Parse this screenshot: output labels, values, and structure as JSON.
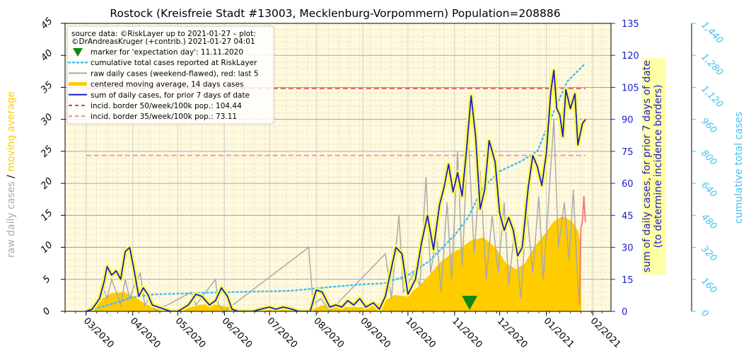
{
  "chart_data": {
    "type": "line",
    "title": "Rostock (Kreisfreie Stadt #13003, Mecklenburg-Vorpommern) Population=208886",
    "x_ticks": [
      "03/2020",
      "04/2020",
      "05/2020",
      "06/2020",
      "07/2020",
      "08/2020",
      "09/2020",
      "10/2020",
      "11/2020",
      "12/2020",
      "01/2021",
      "02/2021"
    ],
    "x_range": [
      "2020-02-16",
      "2021-02-13"
    ],
    "axes": {
      "left": {
        "label_part1": "raw daily cases",
        "label_sep": "/",
        "label_part2": "moving average",
        "range": [
          0,
          45
        ],
        "ticks": [
          "0",
          "5",
          "10",
          "15",
          "20",
          "25",
          "30",
          "35",
          "40",
          "45"
        ]
      },
      "right_inner": {
        "label_line1": "sum of daily cases, for prior 7 days of date",
        "label_line2": "(to determine incidence borders)",
        "range": [
          0,
          135
        ],
        "ticks": [
          "0",
          "15",
          "30",
          "45",
          "60",
          "75",
          "90",
          "105",
          "120",
          "135"
        ]
      },
      "right_outer": {
        "label": "cumulative total cases",
        "range": [
          0,
          1440
        ],
        "ticks": [
          "0",
          "160",
          "320",
          "480",
          "640",
          "800",
          "960",
          "1,120",
          "1,280",
          "1,440"
        ]
      }
    },
    "legend": {
      "placement": "top-left",
      "source_line1": "source data: ©RiskLayer up to 2021-01-27 – plot:",
      "source_line2": "©DrAndreasKruger (+contrib.) 2021-01-27 04:01",
      "entries": [
        {
          "key": "marker",
          "label": "marker for 'expectation day': 11.11.2020"
        },
        {
          "key": "cumulative",
          "label": "cumulative total cases reported at RiskLayer"
        },
        {
          "key": "raw",
          "label": "raw daily cases (weekend-flawed), red: last 5"
        },
        {
          "key": "avg",
          "label": "centered moving average, 14 days cases"
        },
        {
          "key": "sum7",
          "label": "sum of daily cases, for prior 7 days of date"
        },
        {
          "key": "border50",
          "label": "incid. border 50/week/100k pop.: 104.44"
        },
        {
          "key": "border35",
          "label": "incid. border 35/week/100k pop.: 73.11"
        }
      ]
    },
    "incidence_borders": {
      "border50": 104.44,
      "border35": 73.11,
      "start": "2020-03-01",
      "end": "2021-01-27"
    },
    "expectation_day": "2020-11-11",
    "series": {
      "sum7": [
        [
          "2020-03-01",
          0
        ],
        [
          "2020-03-05",
          1
        ],
        [
          "2020-03-10",
          6
        ],
        [
          "2020-03-13",
          14
        ],
        [
          "2020-03-15",
          21
        ],
        [
          "2020-03-18",
          17
        ],
        [
          "2020-03-21",
          19
        ],
        [
          "2020-03-24",
          15
        ],
        [
          "2020-03-27",
          28
        ],
        [
          "2020-03-30",
          30
        ],
        [
          "2020-04-02",
          19
        ],
        [
          "2020-04-05",
          7
        ],
        [
          "2020-04-08",
          11
        ],
        [
          "2020-04-11",
          8
        ],
        [
          "2020-04-14",
          3
        ],
        [
          "2020-04-18",
          2
        ],
        [
          "2020-04-22",
          1
        ],
        [
          "2020-04-26",
          0
        ],
        [
          "2020-05-01",
          0
        ],
        [
          "2020-05-08",
          3
        ],
        [
          "2020-05-13",
          8
        ],
        [
          "2020-05-17",
          7
        ],
        [
          "2020-05-22",
          3
        ],
        [
          "2020-05-26",
          5
        ],
        [
          "2020-05-30",
          11
        ],
        [
          "2020-06-03",
          7
        ],
        [
          "2020-06-06",
          1
        ],
        [
          "2020-06-10",
          0
        ],
        [
          "2020-06-20",
          0
        ],
        [
          "2020-06-25",
          1
        ],
        [
          "2020-07-01",
          2
        ],
        [
          "2020-07-05",
          1
        ],
        [
          "2020-07-10",
          2
        ],
        [
          "2020-07-16",
          1
        ],
        [
          "2020-07-20",
          0
        ],
        [
          "2020-07-28",
          0
        ],
        [
          "2020-08-01",
          10
        ],
        [
          "2020-08-05",
          9
        ],
        [
          "2020-08-10",
          2
        ],
        [
          "2020-08-14",
          3
        ],
        [
          "2020-08-18",
          2
        ],
        [
          "2020-08-22",
          5
        ],
        [
          "2020-08-26",
          3
        ],
        [
          "2020-08-30",
          6
        ],
        [
          "2020-09-03",
          2
        ],
        [
          "2020-09-08",
          4
        ],
        [
          "2020-09-12",
          1
        ],
        [
          "2020-09-16",
          7
        ],
        [
          "2020-09-19",
          17
        ],
        [
          "2020-09-23",
          30
        ],
        [
          "2020-09-27",
          27
        ],
        [
          "2020-10-01",
          8
        ],
        [
          "2020-10-06",
          15
        ],
        [
          "2020-10-10",
          32
        ],
        [
          "2020-10-14",
          45
        ],
        [
          "2020-10-18",
          29
        ],
        [
          "2020-10-22",
          50
        ],
        [
          "2020-10-25",
          58
        ],
        [
          "2020-10-28",
          69
        ],
        [
          "2020-10-31",
          56
        ],
        [
          "2020-11-03",
          65
        ],
        [
          "2020-11-06",
          54
        ],
        [
          "2020-11-09",
          76
        ],
        [
          "2020-11-12",
          101
        ],
        [
          "2020-11-15",
          82
        ],
        [
          "2020-11-18",
          48
        ],
        [
          "2020-11-21",
          57
        ],
        [
          "2020-11-24",
          80
        ],
        [
          "2020-11-28",
          70
        ],
        [
          "2020-12-01",
          46
        ],
        [
          "2020-12-04",
          38
        ],
        [
          "2020-12-07",
          44
        ],
        [
          "2020-12-10",
          38
        ],
        [
          "2020-12-13",
          26
        ],
        [
          "2020-12-16",
          30
        ],
        [
          "2020-12-20",
          58
        ],
        [
          "2020-12-23",
          73
        ],
        [
          "2020-12-26",
          68
        ],
        [
          "2020-12-29",
          59
        ],
        [
          "2021-01-01",
          74
        ],
        [
          "2021-01-04",
          103
        ],
        [
          "2021-01-06",
          113
        ],
        [
          "2021-01-08",
          95
        ],
        [
          "2021-01-10",
          92
        ],
        [
          "2021-01-12",
          82
        ],
        [
          "2021-01-14",
          104
        ],
        [
          "2021-01-17",
          95
        ],
        [
          "2021-01-20",
          102
        ],
        [
          "2021-01-22",
          78
        ],
        [
          "2021-01-25",
          88
        ],
        [
          "2021-01-27",
          90
        ]
      ],
      "avg": [
        [
          "2020-03-01",
          0
        ],
        [
          "2020-03-06",
          0.5
        ],
        [
          "2020-03-12",
          2
        ],
        [
          "2020-03-18",
          2.8
        ],
        [
          "2020-03-26",
          3
        ],
        [
          "2020-04-02",
          2.2
        ],
        [
          "2020-04-10",
          1
        ],
        [
          "2020-04-20",
          0.3
        ],
        [
          "2020-04-30",
          0.1
        ],
        [
          "2020-05-08",
          0.5
        ],
        [
          "2020-05-16",
          1
        ],
        [
          "2020-05-26",
          1
        ],
        [
          "2020-06-05",
          0.6
        ],
        [
          "2020-06-15",
          0.1
        ],
        [
          "2020-06-30",
          0.2
        ],
        [
          "2020-07-15",
          0.3
        ],
        [
          "2020-07-28",
          0.1
        ],
        [
          "2020-08-05",
          0.9
        ],
        [
          "2020-08-15",
          0.7
        ],
        [
          "2020-08-25",
          0.6
        ],
        [
          "2020-09-05",
          0.6
        ],
        [
          "2020-09-15",
          1.5
        ],
        [
          "2020-09-22",
          2.5
        ],
        [
          "2020-09-30",
          2.3
        ],
        [
          "2020-10-08",
          3.8
        ],
        [
          "2020-10-15",
          5.5
        ],
        [
          "2020-10-22",
          7.5
        ],
        [
          "2020-10-30",
          9
        ],
        [
          "2020-11-05",
          9.8
        ],
        [
          "2020-11-12",
          11
        ],
        [
          "2020-11-20",
          11.5
        ],
        [
          "2020-11-28",
          10
        ],
        [
          "2020-12-05",
          7.5
        ],
        [
          "2020-12-12",
          6.5
        ],
        [
          "2020-12-18",
          7.5
        ],
        [
          "2020-12-24",
          10
        ],
        [
          "2020-12-31",
          12
        ],
        [
          "2021-01-06",
          14
        ],
        [
          "2021-01-12",
          14.8
        ],
        [
          "2021-01-18",
          14
        ],
        [
          "2021-01-22",
          12.5
        ],
        [
          "2021-01-24",
          10
        ]
      ],
      "raw": [
        [
          "2020-03-01",
          0
        ],
        [
          "2020-03-08",
          1
        ],
        [
          "2020-03-12",
          4
        ],
        [
          "2020-03-15",
          2
        ],
        [
          "2020-03-18",
          5
        ],
        [
          "2020-03-21",
          3
        ],
        [
          "2020-03-24",
          1
        ],
        [
          "2020-03-27",
          5
        ],
        [
          "2020-03-30",
          2
        ],
        [
          "2020-04-02",
          4
        ],
        [
          "2020-04-06",
          6
        ],
        [
          "2020-04-09",
          1
        ],
        [
          "2020-04-12",
          2
        ],
        [
          "2020-04-16",
          0
        ],
        [
          "2020-05-10",
          3
        ],
        [
          "2020-05-13",
          1
        ],
        [
          "2020-05-26",
          5
        ],
        [
          "2020-05-28",
          1
        ],
        [
          "2020-06-01",
          0
        ],
        [
          "2020-07-27",
          10
        ],
        [
          "2020-07-30",
          1
        ],
        [
          "2020-08-04",
          2
        ],
        [
          "2020-08-10",
          0
        ],
        [
          "2020-09-16",
          9
        ],
        [
          "2020-09-20",
          2
        ],
        [
          "2020-09-25",
          15
        ],
        [
          "2020-09-28",
          3
        ],
        [
          "2020-10-05",
          6
        ],
        [
          "2020-10-09",
          4
        ],
        [
          "2020-10-13",
          21
        ],
        [
          "2020-10-16",
          6
        ],
        [
          "2020-10-20",
          12
        ],
        [
          "2020-10-23",
          3
        ],
        [
          "2020-10-27",
          17
        ],
        [
          "2020-10-30",
          5
        ],
        [
          "2020-11-03",
          25
        ],
        [
          "2020-11-06",
          7
        ],
        [
          "2020-11-10",
          28
        ],
        [
          "2020-11-14",
          9
        ],
        [
          "2020-11-18",
          22
        ],
        [
          "2020-11-22",
          5
        ],
        [
          "2020-11-26",
          15
        ],
        [
          "2020-11-30",
          6
        ],
        [
          "2020-12-04",
          17
        ],
        [
          "2020-12-07",
          4
        ],
        [
          "2020-12-11",
          13
        ],
        [
          "2020-12-15",
          2
        ],
        [
          "2020-12-19",
          16
        ],
        [
          "2020-12-23",
          6
        ],
        [
          "2020-12-27",
          18
        ],
        [
          "2020-12-30",
          5
        ],
        [
          "2021-01-03",
          19
        ],
        [
          "2021-01-06",
          30
        ],
        [
          "2021-01-09",
          10
        ],
        [
          "2021-01-13",
          17
        ],
        [
          "2021-01-16",
          8
        ],
        [
          "2021-01-19",
          19
        ],
        [
          "2021-01-22",
          4
        ],
        [
          "2021-01-23",
          2
        ]
      ],
      "raw_last5": [
        [
          "2021-01-23",
          1
        ],
        [
          "2021-01-24",
          13
        ],
        [
          "2021-01-25",
          14
        ],
        [
          "2021-01-26",
          18
        ],
        [
          "2021-01-27",
          14
        ]
      ],
      "cumulative": [
        [
          "2020-03-01",
          0
        ],
        [
          "2020-03-15",
          30
        ],
        [
          "2020-04-01",
          70
        ],
        [
          "2020-04-15",
          85
        ],
        [
          "2020-05-01",
          88
        ],
        [
          "2020-05-15",
          92
        ],
        [
          "2020-06-01",
          95
        ],
        [
          "2020-06-15",
          98
        ],
        [
          "2020-07-01",
          100
        ],
        [
          "2020-07-15",
          103
        ],
        [
          "2020-08-01",
          115
        ],
        [
          "2020-08-15",
          125
        ],
        [
          "2020-09-01",
          135
        ],
        [
          "2020-09-15",
          140
        ],
        [
          "2020-10-01",
          180
        ],
        [
          "2020-10-15",
          250
        ],
        [
          "2020-11-01",
          380
        ],
        [
          "2020-11-10",
          470
        ],
        [
          "2020-11-20",
          620
        ],
        [
          "2020-12-01",
          700
        ],
        [
          "2020-12-15",
          750
        ],
        [
          "2020-12-26",
          800
        ],
        [
          "2021-01-06",
          1000
        ],
        [
          "2021-01-15",
          1150
        ],
        [
          "2021-01-27",
          1240
        ]
      ]
    },
    "colors": {
      "plot_bg": "#fff9dd",
      "sum7": "#1c1cc8",
      "glow": "#ffff44",
      "avg": "#ffcc00",
      "raw": "#aaaaaa",
      "raw_last5": "#f08080",
      "cumulative": "#44c0f0",
      "border50": "#e04040",
      "border35": "#f08890",
      "marker": "#118811",
      "inner_axis": "#1c1cc8",
      "outer_axis": "#44c0f0",
      "left_label_avg": "#ffcc00",
      "left_label_raw": "#aaaaaa"
    }
  }
}
